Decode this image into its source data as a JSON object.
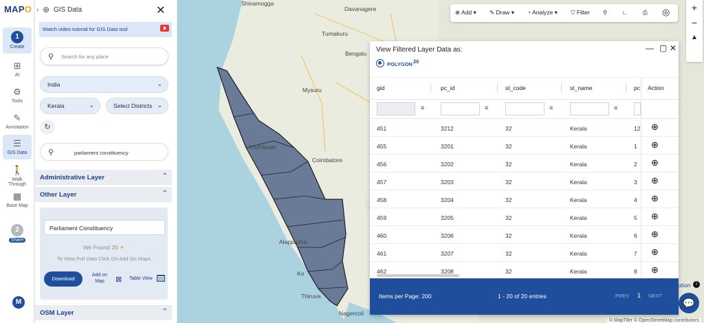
{
  "brand": {
    "logo_a": "MAP",
    "logo_b": "O"
  },
  "rail": {
    "step1": "1",
    "create": "Create",
    "ai": "AI",
    "tools": "Tools",
    "annotation": "Annotation",
    "gis": "GIS Data",
    "walk": "Walk Through",
    "basemap": "Base Map",
    "step2": "2",
    "share": "Share",
    "avatar": "M"
  },
  "panel": {
    "title": "GIS Data",
    "video": "Watch video tutorial for GIS Data tool",
    "search_placeholder": "Search for any place",
    "country": "India",
    "state": "Kerala",
    "districts": "Select Districts",
    "layer_search": "parliament constituency",
    "sec_admin": "Administrative Layer",
    "sec_other": "Other Layer",
    "layer_name": "Parliament Constituency",
    "found": "We Found  20 ",
    "hint": "To View Full Data Click On Add On Maps",
    "download": "Download",
    "add_on": "Add on",
    "map": "Map",
    "table_view": "Table View",
    "sec_osm": "OSM Layer"
  },
  "toolbar": {
    "add": "Add",
    "draw": "Draw",
    "analyze": "Analyze",
    "filter": "Filter"
  },
  "map": {
    "cities": {
      "shivamogga": "Shivamogga",
      "davangere": "Davanagere",
      "tumakuru": "Tumakuru",
      "bengaluru": "Bengalu",
      "mysuru": "Mysuru",
      "kozhikode": "Kozhikode",
      "coimbatore": "Coimbatore",
      "alappuzha": "Alappuzha",
      "kollam": "Ko",
      "thiruvananthapuram": "Thiruva",
      "nagercoil": "Nagercoil"
    },
    "attribution": "© MapTiler © OpenStreetMap contributors",
    "ution": "ution"
  },
  "popup": {
    "title": "View Filtered Layer Data as:",
    "geom": "POLYGON",
    "geom_count": "20",
    "columns": [
      "gid",
      "pc_id",
      "st_code",
      "st_name",
      "pc"
    ],
    "action": "Action",
    "rows": [
      [
        "451",
        "3212",
        "32",
        "Kerala",
        "12"
      ],
      [
        "455",
        "3201",
        "32",
        "Kerala",
        "1"
      ],
      [
        "456",
        "3202",
        "32",
        "Kerala",
        "2"
      ],
      [
        "457",
        "3203",
        "32",
        "Kerala",
        "3"
      ],
      [
        "458",
        "3204",
        "32",
        "Kerala",
        "4"
      ],
      [
        "459",
        "3205",
        "32",
        "Kerala",
        "5"
      ],
      [
        "460",
        "3206",
        "32",
        "Kerala",
        "6"
      ],
      [
        "461",
        "3207",
        "32",
        "Kerala",
        "7"
      ],
      [
        "462",
        "3208",
        "32",
        "Kerala",
        "8"
      ]
    ],
    "items_per_page": "Items per Page: 200",
    "entries": "1 - 20 of 20 entries",
    "prev": "PREV",
    "page": "1",
    "next": "NEXT"
  },
  "colors": {
    "brand": "#1f4e9c",
    "accent": "#f5a623",
    "polygon": "#5b6f8f"
  }
}
